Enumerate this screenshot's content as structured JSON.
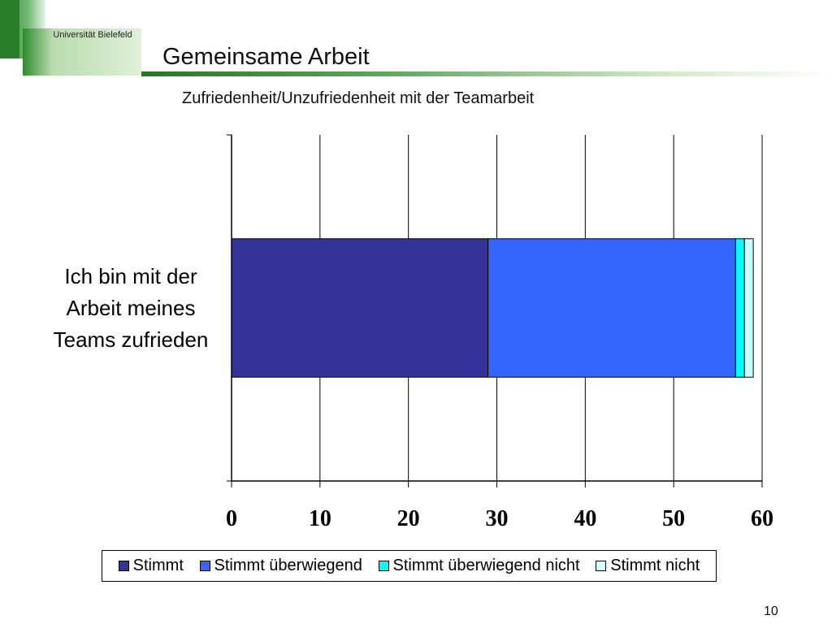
{
  "header": {
    "logo_text": "Universität Bielefeld",
    "title": "Gemeinsame Arbeit"
  },
  "footer": {
    "page_number": "10"
  },
  "colors": {
    "brand_green": "#2d8a2d",
    "light_green": "#cfe8c4"
  },
  "chart_data": {
    "type": "bar",
    "orientation": "horizontal",
    "stacked": true,
    "title": "Zufriedenheit/Unzufriedenheit mit der Teamarbeit",
    "categories": [
      "Ich bin mit der Arbeit meines Teams zufrieden"
    ],
    "category_lines": [
      [
        "Ich bin mit der",
        "Arbeit meines",
        "Teams zufrieden"
      ]
    ],
    "series": [
      {
        "name": "Stimmt",
        "values": [
          29
        ],
        "color": "#333399"
      },
      {
        "name": "Stimmt überwiegend",
        "values": [
          28
        ],
        "color": "#3366ff"
      },
      {
        "name": "Stimmt überwiegend nicht",
        "values": [
          1
        ],
        "color": "#00ffff"
      },
      {
        "name": "Stimmt nicht",
        "values": [
          1
        ],
        "color": "#ccffff"
      }
    ],
    "xlim": [
      0,
      60
    ],
    "xticks": [
      "0",
      "10",
      "20",
      "30",
      "40",
      "50",
      "60"
    ],
    "grid": true,
    "legend_position": "bottom",
    "xlabel": "",
    "ylabel": ""
  }
}
